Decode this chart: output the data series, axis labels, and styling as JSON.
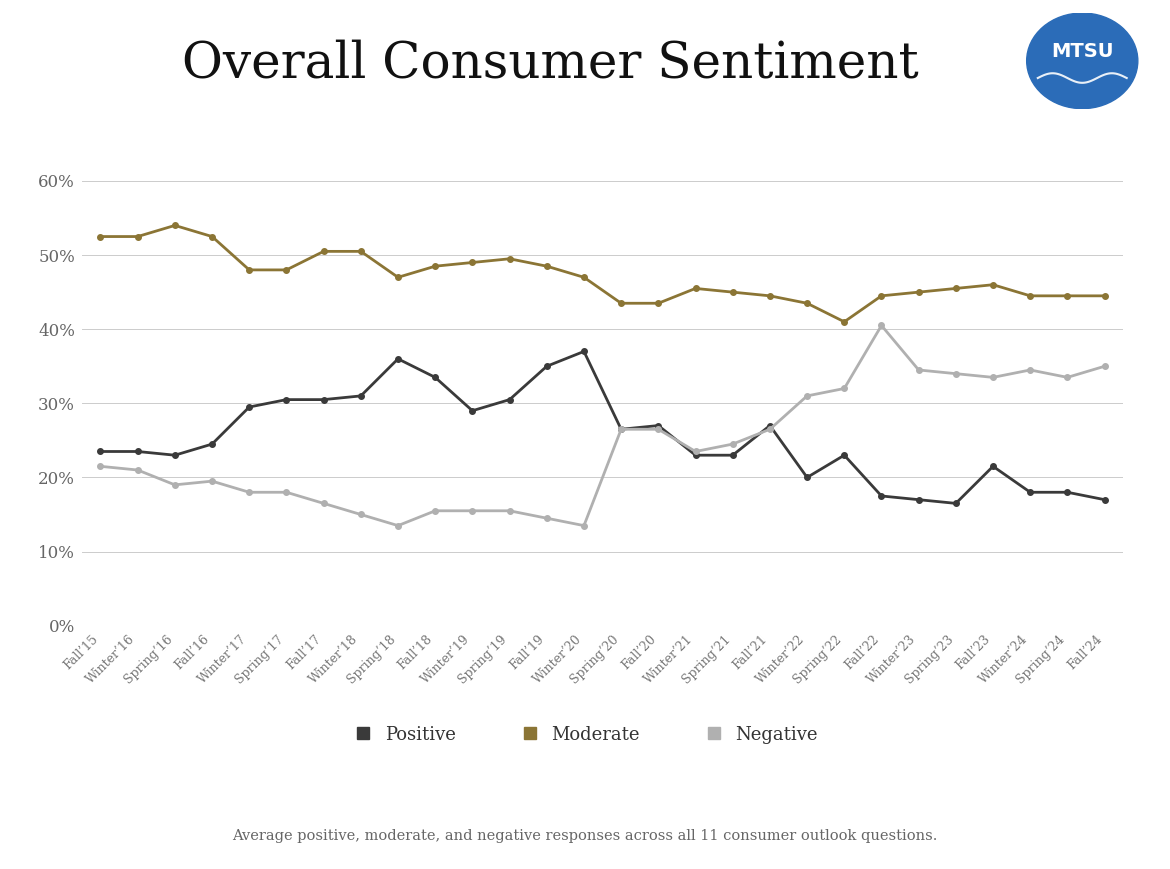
{
  "title": "Overall Consumer Sentiment",
  "subtitle": "Average positive, moderate, and negative responses across all 11 consumer outlook questions.",
  "background_color": "#ffffff",
  "grid_color": "#cccccc",
  "x_labels": [
    "Fall’15",
    "Winter’16",
    "Spring’16",
    "Fall’16",
    "Winter’17",
    "Spring’17",
    "Fall’17",
    "Winter’18",
    "Spring’18",
    "Fall’18",
    "Winter’19",
    "Spring’19",
    "Fall’19",
    "Winter’20",
    "Spring’20",
    "Fall’20",
    "Winter’21",
    "Spring’21",
    "Fall’21",
    "Winter’22",
    "Spring’22",
    "Fall’22",
    "Winter’23",
    "Spring’23",
    "Fall’23",
    "Winter’24",
    "Spring’24",
    "Fall’24"
  ],
  "positive": [
    23.5,
    23.5,
    23.0,
    24.5,
    29.5,
    30.5,
    30.5,
    31.0,
    36.0,
    33.5,
    29.0,
    30.5,
    35.0,
    37.0,
    26.5,
    27.0,
    23.0,
    23.0,
    27.0,
    20.0,
    23.0,
    17.5,
    17.0,
    16.5,
    21.5,
    18.0,
    18.0,
    17.0
  ],
  "moderate": [
    52.5,
    52.5,
    54.0,
    52.5,
    48.0,
    48.0,
    50.5,
    50.5,
    47.0,
    48.5,
    49.0,
    49.5,
    48.5,
    47.0,
    43.5,
    43.5,
    45.5,
    45.0,
    44.5,
    43.5,
    41.0,
    44.5,
    45.0,
    45.5,
    46.0,
    44.5,
    44.5,
    44.5
  ],
  "negative": [
    21.5,
    21.0,
    19.0,
    19.5,
    18.0,
    18.0,
    16.5,
    15.0,
    13.5,
    15.5,
    15.5,
    15.5,
    14.5,
    13.5,
    26.5,
    26.5,
    23.5,
    24.5,
    26.5,
    31.0,
    32.0,
    40.5,
    34.5,
    34.0,
    33.5,
    34.5,
    33.5,
    35.0
  ],
  "positive_color": "#3a3a3a",
  "moderate_color": "#8B7535",
  "negative_color": "#b0b0b0",
  "marker_size": 4,
  "line_width": 2.0,
  "ylim": [
    0,
    68
  ],
  "yticks": [
    0,
    10,
    20,
    30,
    40,
    50,
    60
  ],
  "ytick_labels": [
    "0%",
    "10%",
    "20%",
    "30%",
    "40%",
    "50%",
    "60%"
  ],
  "logo_color": "#2b6cb8",
  "logo_wave_color": "#5a9dd4"
}
